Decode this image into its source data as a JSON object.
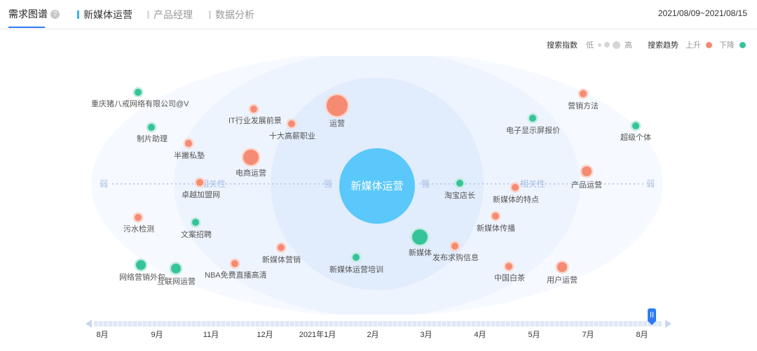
{
  "header": {
    "title": "需求图谱",
    "help_icon": "question-icon",
    "tabs": [
      {
        "label": "新媒体运营",
        "active": true
      },
      {
        "label": "产品经理",
        "active": false
      },
      {
        "label": "数据分析",
        "active": false
      }
    ],
    "date_range": "2021/08/09~2021/08/15"
  },
  "legend": {
    "index_label": "搜索指数",
    "low": "低",
    "high": "高",
    "trend_label": "搜索趋势",
    "up": "上升",
    "down": "下降",
    "colors": {
      "up": "#f58b72",
      "down": "#35c49a",
      "center": "#5ac8fa"
    }
  },
  "graph": {
    "center": "新媒体运营",
    "weak_left": "弱",
    "weak_right": "弱",
    "strong_left": "强",
    "strong_right": "强",
    "relevance_left": "相关性",
    "relevance_right": "相关性",
    "nodes": [
      {
        "label": "重庆猪八戒网络有限公司@V",
        "trend": "down",
        "size": 1
      },
      {
        "label": "制片助理",
        "trend": "down",
        "size": 1
      },
      {
        "label": "半撇私塾",
        "trend": "up",
        "size": 1
      },
      {
        "label": "IT行业发展前景",
        "trend": "up",
        "size": 1
      },
      {
        "label": "十大高薪职业",
        "trend": "up",
        "size": 1
      },
      {
        "label": "运营",
        "trend": "up",
        "size": 4
      },
      {
        "label": "电商运营",
        "trend": "up",
        "size": 3
      },
      {
        "label": "卓越加盟网",
        "trend": "up",
        "size": 1
      },
      {
        "label": "污水检测",
        "trend": "up",
        "size": 1
      },
      {
        "label": "文案招聘",
        "trend": "down",
        "size": 1
      },
      {
        "label": "网络营销外包",
        "trend": "down",
        "size": 2
      },
      {
        "label": "互联网运营",
        "trend": "down",
        "size": 2
      },
      {
        "label": "NBA免费直播高清",
        "trend": "up",
        "size": 1
      },
      {
        "label": "新媒体营销",
        "trend": "up",
        "size": 1
      },
      {
        "label": "新媒体运营培训",
        "trend": "down",
        "size": 1
      },
      {
        "label": "新媒体",
        "trend": "down",
        "size": 3
      },
      {
        "label": "发布求购信息",
        "trend": "up",
        "size": 1
      },
      {
        "label": "淘宝店长",
        "trend": "down",
        "size": 1
      },
      {
        "label": "新媒体的特点",
        "trend": "up",
        "size": 1
      },
      {
        "label": "新媒体传播",
        "trend": "up",
        "size": 1
      },
      {
        "label": "电子显示屏报价",
        "trend": "down",
        "size": 1
      },
      {
        "label": "营销方法",
        "trend": "up",
        "size": 1
      },
      {
        "label": "超级个体",
        "trend": "down",
        "size": 1
      },
      {
        "label": "产品运营",
        "trend": "up",
        "size": 2
      },
      {
        "label": "中国白茶",
        "trend": "up",
        "size": 1
      },
      {
        "label": "用户运营",
        "trend": "up",
        "size": 2
      }
    ]
  },
  "timeline": {
    "labels": [
      "8月",
      "9月",
      "11月",
      "12月",
      "2021年1月",
      "2月",
      "3月",
      "4月",
      "5月",
      "7月",
      "8月"
    ]
  }
}
